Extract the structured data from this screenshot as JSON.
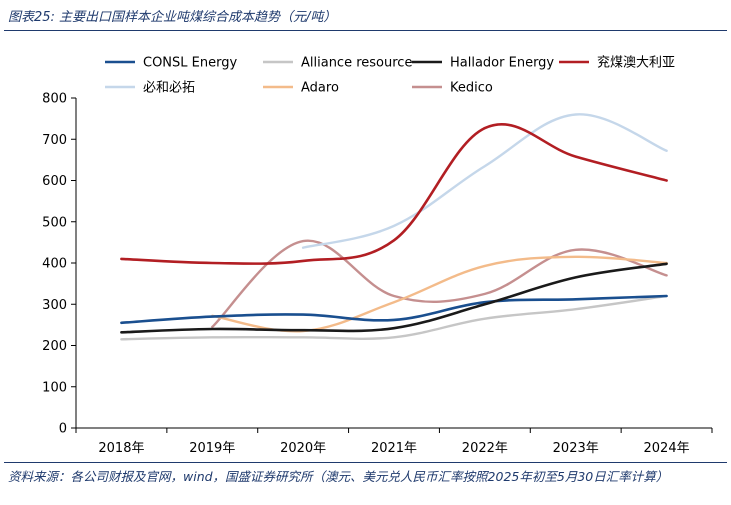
{
  "figure": {
    "title": "图表25:  主要出口国样本企业吨煤综合成本趋势（元/吨）",
    "source": "资料来源：各公司财报及官网，wind，国盛证券研究所（澳元、美元兑人民币汇率按照2025年初至5月30日汇率计算）"
  },
  "chart_data": {
    "type": "line",
    "title": "",
    "xlabel": "",
    "ylabel": "",
    "categories": [
      "2018年",
      "2019年",
      "2020年",
      "2021年",
      "2022年",
      "2023年",
      "2024年"
    ],
    "ylim": [
      0,
      800
    ],
    "yticks": [
      0,
      100,
      200,
      300,
      400,
      500,
      600,
      700,
      800
    ],
    "grid": false,
    "smooth": true,
    "legend_position": "top",
    "series": [
      {
        "name": "CONSL Energy",
        "color": "#1a4f8f",
        "values": [
          255,
          270,
          275,
          262,
          305,
          312,
          320
        ]
      },
      {
        "name": "Alliance resource",
        "color": "#c6c6c6",
        "values": [
          215,
          220,
          220,
          220,
          265,
          288,
          320
        ]
      },
      {
        "name": "Hallador Energy",
        "color": "#1a1a1a",
        "values": [
          232,
          240,
          237,
          242,
          300,
          365,
          398
        ]
      },
      {
        "name": "兖煤澳大利亚",
        "color": "#b21e23",
        "values": [
          410,
          400,
          405,
          455,
          727,
          658,
          600
        ]
      },
      {
        "name": "必和必拓",
        "color": "#c5d7ea",
        "values": [
          null,
          null,
          437,
          490,
          635,
          760,
          672
        ]
      },
      {
        "name": "Adaro",
        "color": "#f3bb8a",
        "values": [
          null,
          272,
          235,
          305,
          393,
          415,
          400
        ]
      },
      {
        "name": "Kedico",
        "color": "#c58f8f",
        "values": [
          null,
          245,
          453,
          320,
          325,
          432,
          370
        ]
      }
    ]
  }
}
